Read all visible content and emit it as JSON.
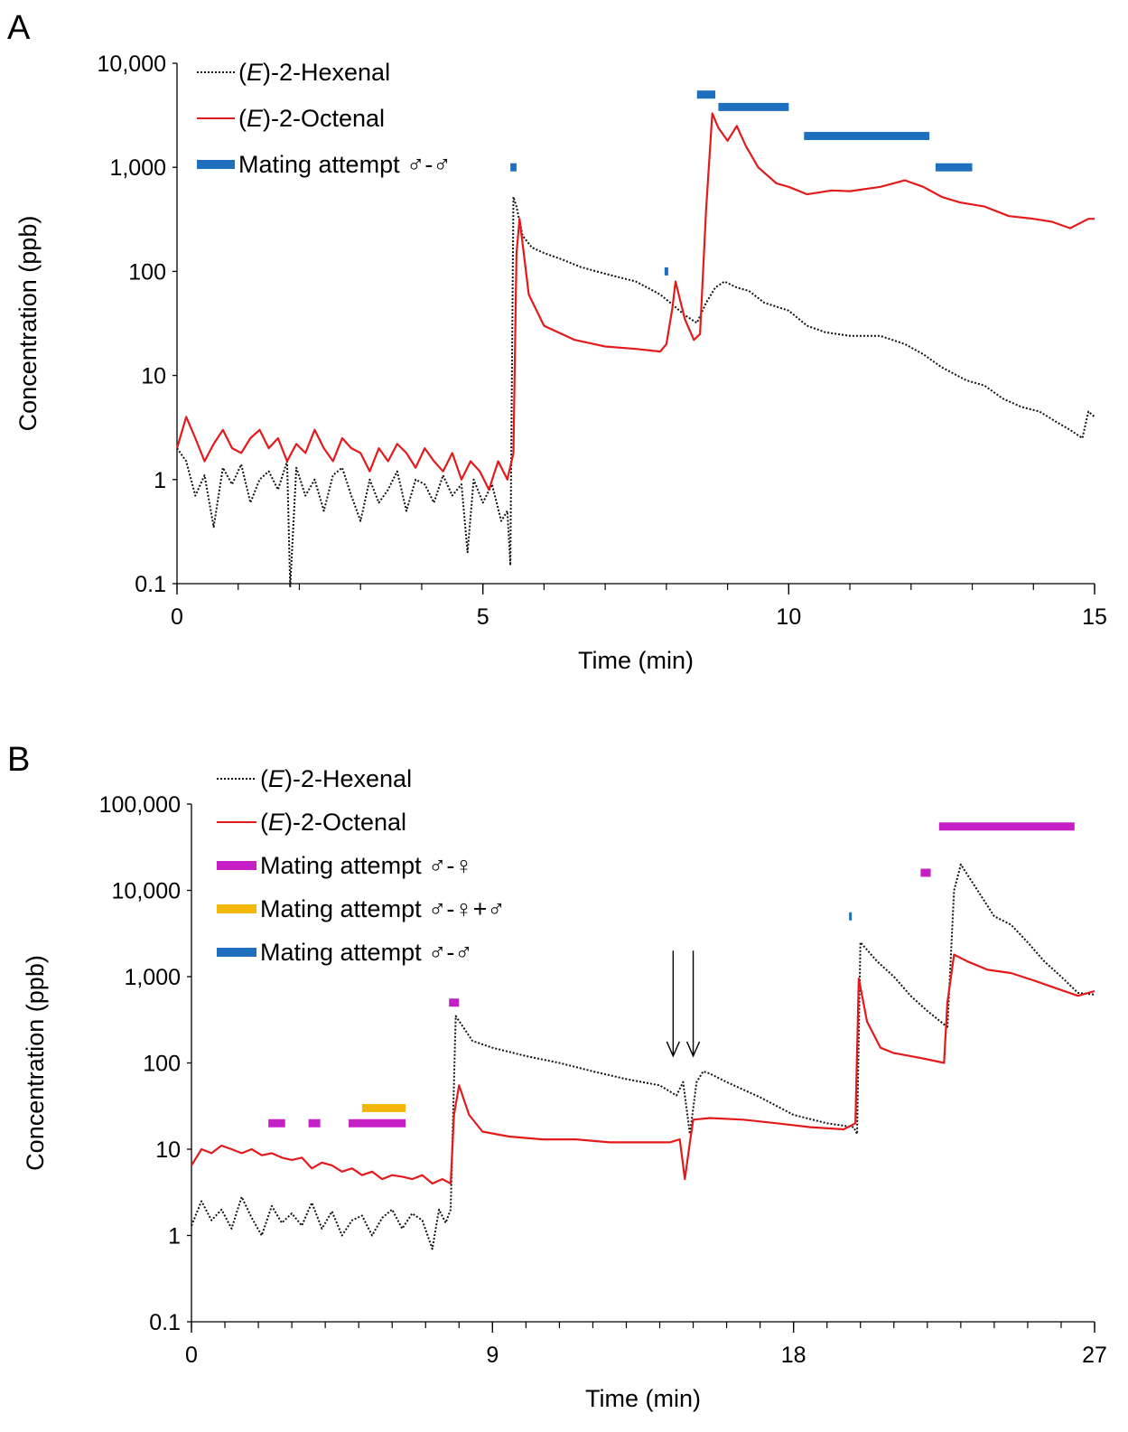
{
  "colors": {
    "hexenal": "#111111",
    "octenal": "#e31a1c",
    "male_male": "#1f6fbf",
    "male_female": "#c51fc5",
    "male_female_male": "#f5b70a"
  },
  "chart_data": [
    {
      "panel": "A",
      "type": "line",
      "xlabel": "Time (min)",
      "ylabel": "Concentration (ppb)",
      "xlim": [
        0,
        15
      ],
      "xticks": [
        "0",
        "5",
        "10",
        "15"
      ],
      "yscale": "log",
      "ylim": [
        0.1,
        10000
      ],
      "yticks": [
        "0.1",
        "1",
        "10",
        "100",
        "1,000",
        "10,000"
      ],
      "grid": false,
      "legend_position": "top-left",
      "legend": [
        {
          "label_prefix": "(",
          "label_italic": "E",
          "label_suffix": ")-2-Hexenal",
          "style": "dotted",
          "color": "#111111"
        },
        {
          "label_prefix": "(",
          "label_italic": "E",
          "label_suffix": ")-2-Octenal",
          "style": "line",
          "color": "#e31a1c"
        },
        {
          "label": "Mating attempt ♂-♂",
          "style": "bar",
          "color": "#1f6fbf"
        }
      ],
      "series": [
        {
          "name": "(E)-2-Hexenal",
          "style": "dotted",
          "color": "#111111",
          "x": [
            0,
            0.15,
            0.3,
            0.45,
            0.6,
            0.75,
            0.9,
            1.05,
            1.2,
            1.35,
            1.5,
            1.65,
            1.8,
            1.85,
            1.95,
            2.1,
            2.25,
            2.4,
            2.55,
            2.7,
            2.85,
            3.0,
            3.15,
            3.3,
            3.45,
            3.6,
            3.75,
            3.9,
            4.05,
            4.2,
            4.35,
            4.5,
            4.65,
            4.75,
            4.85,
            5.0,
            5.15,
            5.3,
            5.4,
            5.45,
            5.5,
            5.55,
            5.65,
            5.8,
            6.0,
            6.3,
            6.6,
            7.0,
            7.5,
            7.9,
            8.1,
            8.3,
            8.5,
            8.65,
            8.8,
            8.95,
            9.15,
            9.35,
            9.6,
            10.0,
            10.3,
            10.6,
            11.0,
            11.5,
            11.9,
            12.2,
            12.5,
            12.9,
            13.2,
            13.5,
            13.8,
            14.1,
            14.4,
            14.6,
            14.8,
            14.9,
            15.0
          ],
          "values": [
            2.0,
            1.5,
            0.7,
            1.1,
            0.35,
            1.3,
            0.9,
            1.4,
            0.6,
            1.0,
            1.2,
            0.8,
            1.5,
            0.08,
            1.3,
            0.7,
            1.0,
            0.5,
            1.1,
            1.3,
            0.7,
            0.4,
            1.0,
            0.6,
            0.8,
            1.2,
            0.5,
            1.0,
            0.9,
            0.6,
            1.1,
            0.7,
            0.9,
            0.2,
            1.0,
            0.6,
            0.9,
            0.4,
            0.5,
            0.15,
            520,
            420,
            220,
            170,
            150,
            130,
            110,
            95,
            80,
            60,
            48,
            38,
            32,
            50,
            70,
            80,
            70,
            65,
            50,
            42,
            30,
            26,
            24,
            24,
            20,
            16,
            12,
            9,
            8,
            6,
            5,
            4.5,
            3.5,
            3,
            2.5,
            4.5,
            4
          ]
        },
        {
          "name": "(E)-2-Octenal",
          "style": "line",
          "color": "#e31a1c",
          "x": [
            0,
            0.15,
            0.3,
            0.45,
            0.6,
            0.75,
            0.9,
            1.05,
            1.2,
            1.35,
            1.5,
            1.65,
            1.8,
            1.95,
            2.1,
            2.25,
            2.4,
            2.55,
            2.7,
            2.85,
            3.0,
            3.15,
            3.3,
            3.45,
            3.6,
            3.75,
            3.9,
            4.05,
            4.2,
            4.35,
            4.5,
            4.65,
            4.8,
            4.95,
            5.1,
            5.25,
            5.4,
            5.5,
            5.55,
            5.6,
            5.75,
            6.0,
            6.5,
            7.0,
            7.5,
            7.9,
            8.0,
            8.1,
            8.15,
            8.3,
            8.45,
            8.55,
            8.65,
            8.75,
            8.85,
            9.0,
            9.15,
            9.3,
            9.5,
            9.8,
            10.0,
            10.3,
            10.7,
            11.0,
            11.5,
            11.9,
            12.2,
            12.5,
            12.8,
            13.2,
            13.6,
            14.0,
            14.3,
            14.6,
            14.9,
            15.0
          ],
          "values": [
            2.0,
            4.0,
            2.5,
            1.5,
            2.2,
            3.0,
            2.0,
            1.8,
            2.5,
            3.0,
            2.0,
            2.5,
            1.5,
            2.2,
            1.8,
            3.0,
            2.0,
            1.5,
            2.5,
            2.0,
            1.8,
            1.2,
            2.0,
            1.5,
            2.2,
            1.8,
            1.3,
            2.0,
            1.5,
            1.2,
            1.8,
            1.0,
            1.5,
            1.2,
            0.8,
            1.5,
            1.0,
            1.8,
            150,
            320,
            60,
            30,
            22,
            19,
            18,
            17,
            20,
            45,
            80,
            35,
            22,
            25,
            400,
            3300,
            2400,
            1800,
            2500,
            1600,
            1000,
            700,
            650,
            550,
            600,
            590,
            650,
            750,
            650,
            520,
            460,
            420,
            340,
            320,
            300,
            260,
            320,
            320
          ]
        }
      ],
      "bars": [
        {
          "label": "Mating attempt ♂-♂",
          "color": "#1f6fbf",
          "start": 5.45,
          "end": 5.55,
          "level": 1000
        },
        {
          "label": "Mating attempt ♂-♂",
          "color": "#1f6fbf",
          "start": 7.97,
          "end": 8.03,
          "level": 100
        },
        {
          "label": "Mating attempt ♂-♂",
          "color": "#1f6fbf",
          "start": 8.5,
          "end": 8.8,
          "level": 5000
        },
        {
          "label": "Mating attempt ♂-♂",
          "color": "#1f6fbf",
          "start": 8.85,
          "end": 10.0,
          "level": 3800
        },
        {
          "label": "Mating attempt ♂-♂",
          "color": "#1f6fbf",
          "start": 10.25,
          "end": 12.3,
          "level": 2000
        },
        {
          "label": "Mating attempt ♂-♂",
          "color": "#1f6fbf",
          "start": 12.4,
          "end": 13.0,
          "level": 1000
        }
      ]
    },
    {
      "panel": "B",
      "type": "line",
      "xlabel": "Time (min)",
      "ylabel": "Concentration (ppb)",
      "xlim": [
        0,
        27
      ],
      "xticks": [
        "0",
        "9",
        "18",
        "27"
      ],
      "yscale": "log",
      "ylim": [
        0.1,
        100000
      ],
      "yticks": [
        "0.1",
        "1",
        "10",
        "100",
        "1,000",
        "10,000",
        "100,000"
      ],
      "grid": false,
      "legend_position": "top-left",
      "legend": [
        {
          "label_prefix": "(",
          "label_italic": "E",
          "label_suffix": ")-2-Hexenal",
          "style": "dotted",
          "color": "#111111"
        },
        {
          "label_prefix": "(",
          "label_italic": "E",
          "label_suffix": ")-2-Octenal",
          "style": "line",
          "color": "#e31a1c"
        },
        {
          "label": "Mating attempt ♂-♀",
          "style": "bar",
          "color": "#c51fc5"
        },
        {
          "label": "Mating attempt ♂-♀+♂",
          "style": "bar",
          "color": "#f5b70a"
        },
        {
          "label": "Mating attempt ♂-♂",
          "style": "bar",
          "color": "#1f6fbf"
        }
      ],
      "series": [
        {
          "name": "(E)-2-Hexenal",
          "style": "dotted",
          "color": "#111111",
          "x": [
            0,
            0.3,
            0.6,
            0.9,
            1.2,
            1.5,
            1.8,
            2.1,
            2.4,
            2.7,
            3.0,
            3.3,
            3.6,
            3.9,
            4.2,
            4.5,
            4.8,
            5.1,
            5.4,
            5.7,
            6.0,
            6.3,
            6.6,
            6.9,
            7.2,
            7.4,
            7.6,
            7.75,
            7.9,
            8.4,
            9.0,
            10.0,
            11.0,
            12.0,
            13.0,
            14.0,
            14.5,
            14.7,
            14.9,
            15.1,
            15.3,
            15.5,
            16.0,
            17.0,
            18.0,
            19.0,
            19.8,
            19.9,
            20.0,
            20.5,
            21.0,
            21.5,
            22.0,
            22.5,
            22.6,
            22.8,
            23.0,
            23.5,
            24.0,
            24.5,
            25.0,
            25.5,
            26.0,
            26.5,
            27.0
          ],
          "values": [
            1.3,
            2.5,
            1.5,
            2.0,
            1.2,
            2.8,
            1.6,
            1.0,
            2.2,
            1.4,
            1.8,
            1.3,
            2.4,
            1.2,
            1.9,
            1.0,
            1.5,
            1.7,
            1.0,
            1.6,
            2.0,
            1.2,
            1.8,
            1.5,
            0.7,
            2.0,
            1.4,
            2.0,
            350,
            180,
            150,
            120,
            100,
            80,
            65,
            55,
            42,
            60,
            15,
            60,
            80,
            75,
            60,
            40,
            25,
            20,
            18,
            15,
            2500,
            1500,
            1000,
            600,
            400,
            280,
            250,
            10000,
            20000,
            10000,
            5000,
            4000,
            2500,
            1500,
            1000,
            650,
            620
          ]
        },
        {
          "name": "(E)-2-Octenal",
          "style": "line",
          "color": "#e31a1c",
          "x": [
            0,
            0.3,
            0.6,
            0.9,
            1.2,
            1.5,
            1.8,
            2.1,
            2.4,
            2.7,
            3.0,
            3.3,
            3.6,
            3.9,
            4.2,
            4.5,
            4.8,
            5.1,
            5.4,
            5.7,
            6.0,
            6.3,
            6.6,
            6.9,
            7.2,
            7.5,
            7.75,
            7.85,
            8.0,
            8.3,
            8.7,
            9.5,
            10.5,
            11.5,
            12.5,
            13.5,
            14.3,
            14.6,
            14.75,
            14.9,
            15.0,
            15.5,
            16.5,
            17.5,
            18.5,
            19.5,
            19.85,
            19.95,
            20.2,
            20.6,
            21.0,
            21.5,
            22.0,
            22.5,
            22.6,
            22.8,
            23.2,
            23.8,
            24.5,
            25.2,
            26.0,
            26.5,
            27.0
          ],
          "values": [
            6.5,
            10,
            9.0,
            11,
            10,
            9.0,
            10,
            8.5,
            9.0,
            8.0,
            7.5,
            8.0,
            6.0,
            7.0,
            6.5,
            5.5,
            6.0,
            5.0,
            5.5,
            4.5,
            5.0,
            4.8,
            4.5,
            5.0,
            4.0,
            4.5,
            4.0,
            25,
            55,
            25,
            16,
            14,
            13,
            13,
            12,
            12,
            12,
            13,
            4.5,
            12,
            22,
            23,
            22,
            20,
            18,
            17,
            20,
            950,
            300,
            150,
            130,
            120,
            110,
            100,
            500,
            1800,
            1500,
            1200,
            1100,
            900,
            700,
            600,
            680
          ]
        }
      ],
      "bars": [
        {
          "label": "Mating attempt ♂-♀",
          "color": "#c51fc5",
          "start": 2.3,
          "end": 2.8,
          "level": 20
        },
        {
          "label": "Mating attempt ♂-♀",
          "color": "#c51fc5",
          "start": 3.5,
          "end": 3.85,
          "level": 20
        },
        {
          "label": "Mating attempt ♂-♀",
          "color": "#c51fc5",
          "start": 4.7,
          "end": 6.4,
          "level": 20
        },
        {
          "label": "Mating attempt ♂-♀+♂",
          "color": "#f5b70a",
          "start": 5.1,
          "end": 6.4,
          "level": 30
        },
        {
          "label": "Mating attempt ♂-♀",
          "color": "#c51fc5",
          "start": 7.7,
          "end": 8.0,
          "level": 500
        },
        {
          "label": "Mating attempt ♂-♂",
          "color": "#1f6fbf",
          "start": 19.66,
          "end": 19.74,
          "level": 5000
        },
        {
          "label": "Mating attempt ♂-♀",
          "color": "#c51fc5",
          "start": 21.8,
          "end": 22.1,
          "level": 16000
        },
        {
          "label": "Mating attempt ♂-♀",
          "color": "#c51fc5",
          "start": 22.35,
          "end": 26.4,
          "level": 55000
        }
      ],
      "annotations": [
        {
          "type": "arrow",
          "x": 14.4,
          "from": 2000,
          "to": 120
        },
        {
          "type": "arrow",
          "x": 15.0,
          "from": 2000,
          "to": 120
        }
      ]
    }
  ]
}
